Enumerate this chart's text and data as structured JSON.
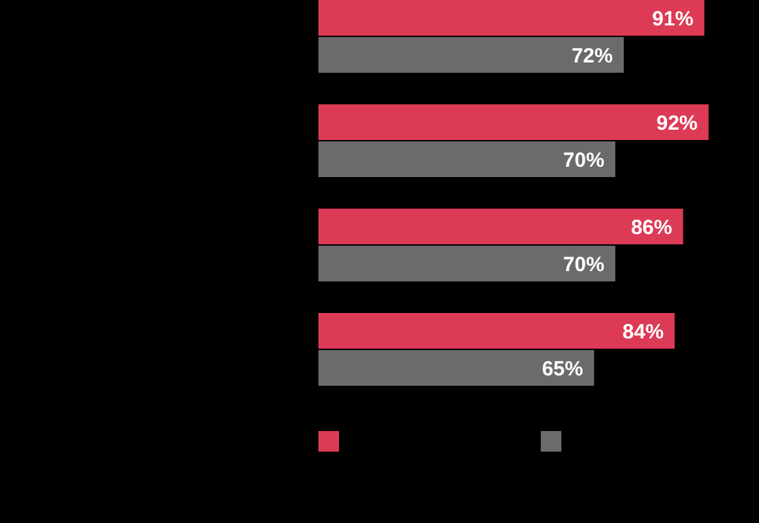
{
  "chart_data": {
    "type": "bar",
    "orientation": "horizontal",
    "categories": [
      null,
      null,
      null,
      null
    ],
    "series": [
      {
        "color": "#dc3a55",
        "values": [
          91,
          92,
          86,
          84
        ],
        "value_labels": [
          "91%",
          "92%",
          "86%",
          "84%"
        ]
      },
      {
        "color": "#6b6b6b",
        "values": [
          72,
          70,
          70,
          65
        ],
        "value_labels": [
          "72%",
          "70%",
          "70%",
          "65%"
        ]
      }
    ]
  }
}
